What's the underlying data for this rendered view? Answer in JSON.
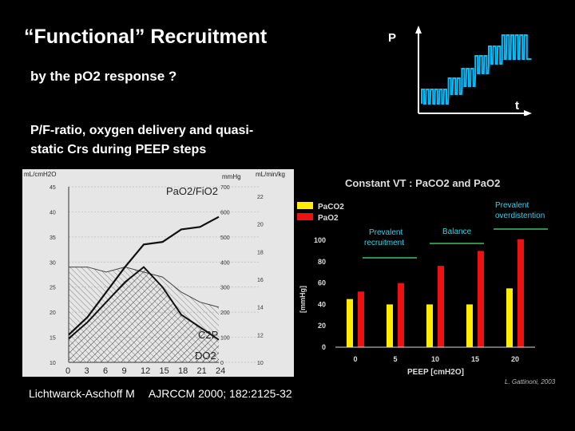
{
  "slide": {
    "title": "“Functional” Recruitment",
    "subtitle": "by the pO2 response ?",
    "pf_line1": "P/F-ratio, oxygen delivery and quasi-",
    "pf_line2": "static Crs during PEEP steps",
    "citation_author": "Lichtwarck-Aschoff M",
    "citation_ref": "AJRCCM 2000; 182:2125-32"
  },
  "pt_diagram": {
    "p_label": "P",
    "t_label": "t"
  },
  "left_chart": {
    "type": "line",
    "units_left": "mL/cmH2O",
    "units_mid": "mmHg",
    "units_right": "mL/min/kg",
    "label_pf": "PaO2/FiO2",
    "label_c2p": "C2P",
    "label_do2": "DO2",
    "x": [
      "0",
      "3",
      "6",
      "9",
      "12",
      "15",
      "18",
      "21",
      "24"
    ],
    "y_left_ticks": [
      "10",
      "15",
      "20",
      "25",
      "30",
      "35",
      "40",
      "45"
    ],
    "y_mid_ticks": [
      "0",
      "100",
      "200",
      "300",
      "400",
      "500",
      "600",
      "700"
    ],
    "y_right_ticks": [
      "10",
      "12",
      "14",
      "16",
      "18",
      "20",
      "22"
    ],
    "series": [
      {
        "name": "PaO2/FiO2",
        "values": [
          110,
          180,
          280,
          380,
          470,
          480,
          530,
          540,
          580
        ]
      },
      {
        "name": "DO2",
        "values": [
          95,
          160,
          240,
          320,
          380,
          300,
          190,
          140,
          90
        ]
      },
      {
        "name": "C2P",
        "values": [
          29,
          29,
          28,
          29,
          28,
          27,
          24,
          22,
          21
        ]
      }
    ]
  },
  "right_chart": {
    "type": "bar",
    "title": "Constant VT : PaCO2 and PaO2",
    "legend_paco2": "PaCO2",
    "legend_pao2": "PaO2",
    "ylabel": "[mmHg]",
    "xlabel": "PEEP [cmH2O]",
    "annot_recruit_1": "Prevalent",
    "annot_recruit_2": "recruitment",
    "annot_balance": "Balance",
    "annot_over_1": "Prevalent",
    "annot_over_2": "overdistention",
    "credit": "L. Gattinoni, 2003",
    "categories": [
      "0",
      "5",
      "10",
      "15",
      "20"
    ],
    "y_ticks": [
      "0",
      "20",
      "40",
      "60",
      "80",
      "100"
    ],
    "ylim": [
      0,
      100
    ],
    "colors": {
      "paco2": "#ffee00",
      "pao2": "#ee1111"
    },
    "series": [
      {
        "name": "PaCO2",
        "values": [
          45,
          40,
          40,
          40,
          55
        ]
      },
      {
        "name": "PaO2",
        "values": [
          52,
          60,
          76,
          90,
          101
        ]
      }
    ]
  }
}
